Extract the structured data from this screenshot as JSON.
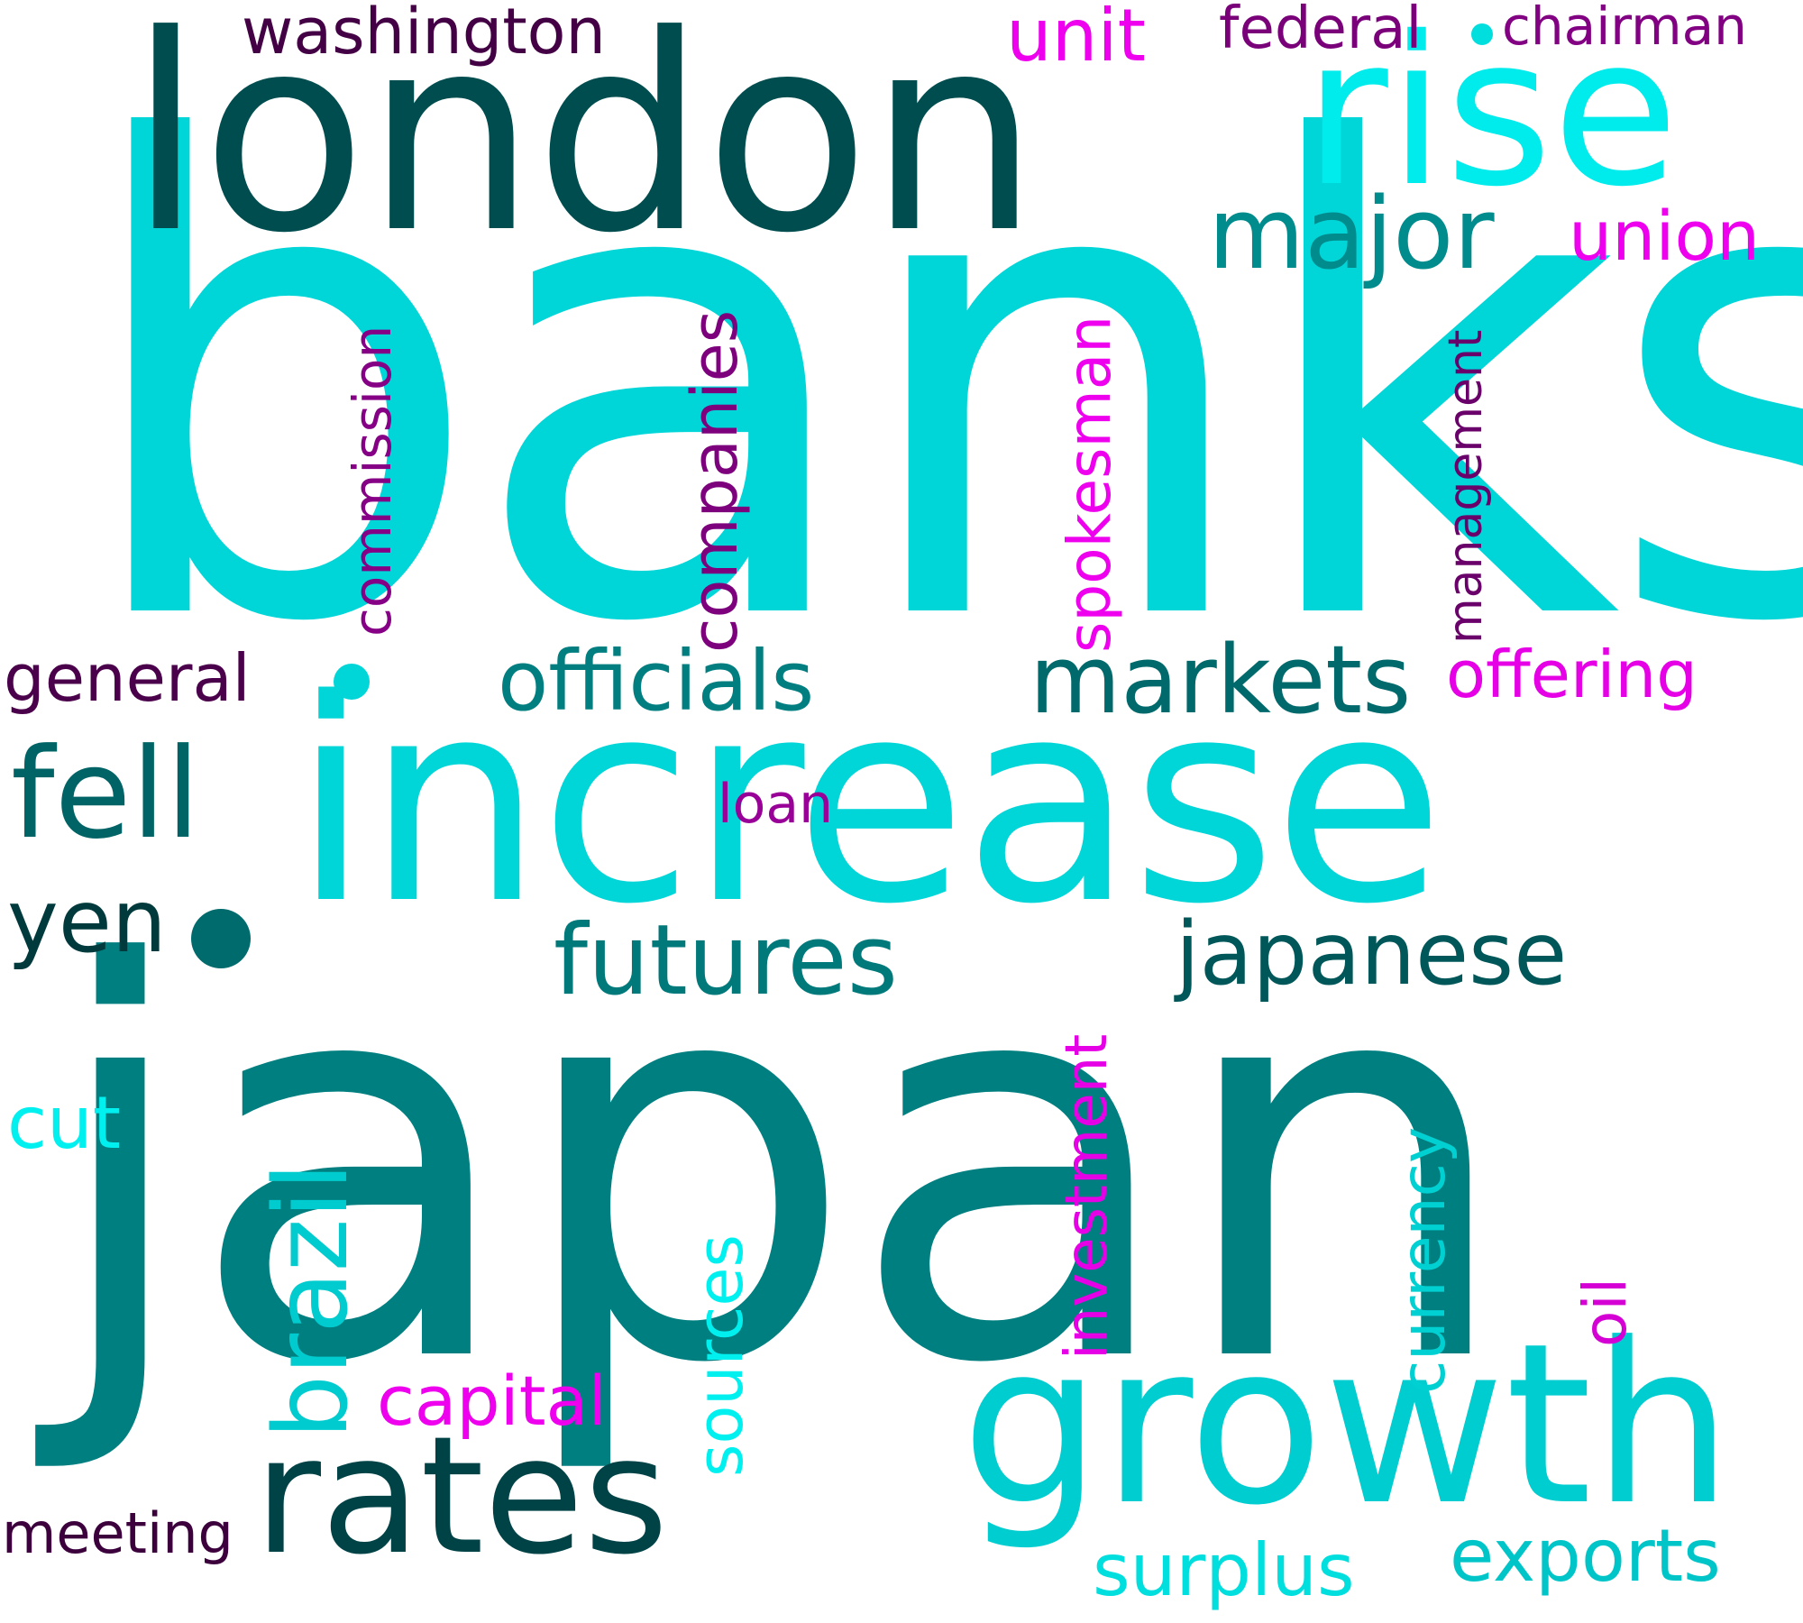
{
  "cloud": {
    "words": [
      {
        "text": "banks",
        "color": "#00d5d8"
      },
      {
        "text": "japan",
        "color": "#007f80"
      },
      {
        "text": "increase",
        "color": "#00d5d8"
      },
      {
        "text": "london",
        "color": "#004d4f"
      },
      {
        "text": "growth",
        "color": "#00cdd0"
      },
      {
        "text": "rise",
        "color": "#00ecec"
      },
      {
        "text": "rates",
        "color": "#004347"
      },
      {
        "text": "fell",
        "color": "#006466"
      },
      {
        "text": "markets",
        "color": "#00696b"
      },
      {
        "text": "futures",
        "color": "#00797b"
      },
      {
        "text": "japanese",
        "color": "#005759"
      },
      {
        "text": "officials",
        "color": "#007e80"
      },
      {
        "text": "major",
        "color": "#008b8c"
      },
      {
        "text": "yen",
        "color": "#003a3c"
      },
      {
        "text": "brazil",
        "color": "#00cccf"
      },
      {
        "text": "surplus",
        "color": "#00dede"
      },
      {
        "text": "exports",
        "color": "#00c5c8"
      },
      {
        "text": "washington",
        "color": "#440044"
      },
      {
        "text": "unit",
        "color": "#ee00ee"
      },
      {
        "text": "federal",
        "color": "#7a007a"
      },
      {
        "text": "chairman",
        "color": "#820082"
      },
      {
        "text": "union",
        "color": "#ee00ee"
      },
      {
        "text": "management",
        "color": "#6a006a"
      },
      {
        "text": "commission",
        "color": "#860086"
      },
      {
        "text": "companies",
        "color": "#7d007d"
      },
      {
        "text": "spokesman",
        "color": "#ee00ee"
      },
      {
        "text": "general",
        "color": "#4a004a"
      },
      {
        "text": "offering",
        "color": "#e600e6"
      },
      {
        "text": "loan",
        "color": "#980098"
      },
      {
        "text": "investment",
        "color": "#e600e6"
      },
      {
        "text": "currency",
        "color": "#00d0d2"
      },
      {
        "text": "sources",
        "color": "#00f0f0"
      },
      {
        "text": "oil",
        "color": "#d400d4"
      },
      {
        "text": "cut",
        "color": "#00f0f0"
      },
      {
        "text": "capital",
        "color": "#ee00ee"
      },
      {
        "text": "meeting",
        "color": "#3c003c"
      }
    ]
  }
}
